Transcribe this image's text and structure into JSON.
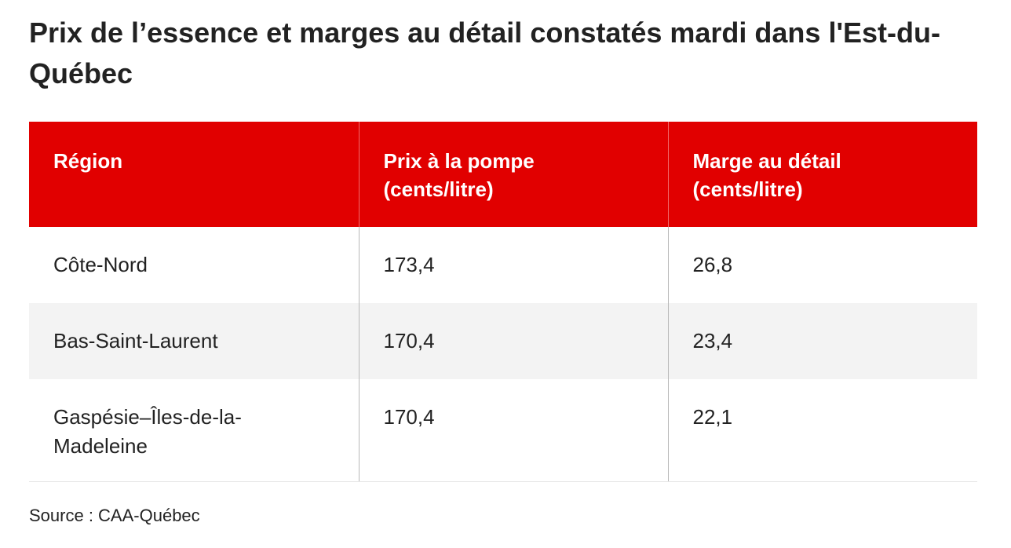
{
  "title": "Prix de l’essence et marges au détail constatés mardi dans l'Est-du-Québec",
  "source": "Source : CAA-Québec",
  "colors": {
    "header_background": "#e10000",
    "header_text": "#ffffff",
    "zebra_row": "#f3f3f3",
    "text": "#222222"
  },
  "chart_data": {
    "type": "table",
    "title": "Prix de l’essence et marges au détail constatés mardi dans l'Est-du-Québec",
    "columns": [
      "Région",
      "Prix à la pompe (cents/litre)",
      "Marge au détail (cents/litre)"
    ],
    "rows": [
      [
        "Côte-Nord",
        "173,4",
        "26,8"
      ],
      [
        "Bas-Saint-Laurent",
        "170,4",
        "23,4"
      ],
      [
        "Gaspésie–Îles-de-la-Madeleine",
        "170,4",
        "22,1"
      ]
    ]
  }
}
